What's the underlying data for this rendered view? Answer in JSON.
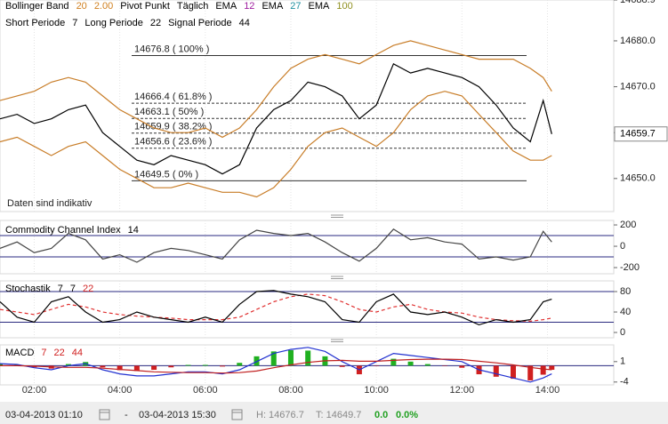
{
  "chart_data": [
    {
      "type": "line",
      "legend": [
        [
          {
            "text": "Bollinger Band",
            "color": "#000000"
          },
          {
            "text": 20,
            "color": "#d08020"
          },
          {
            "text": "2.00",
            "color": "#d08020"
          },
          {
            "text": "Pivot Punkt",
            "color": "#000000"
          },
          {
            "text": "Täglich",
            "color": "#000000"
          },
          {
            "text": "EMA",
            "color": "#000000"
          },
          {
            "text": 12,
            "color": "#a020a0"
          },
          {
            "text": "EMA",
            "color": "#000000"
          },
          {
            "text": 27,
            "color": "#2090a0"
          },
          {
            "text": "EMA",
            "color": "#000000"
          },
          {
            "text": 100,
            "color": "#909020"
          }
        ],
        [
          {
            "text": "Short Periode",
            "color": "#000000"
          },
          {
            "text": 7,
            "color": "#000000"
          },
          {
            "text": "Long Periode",
            "color": "#000000"
          },
          {
            "text": 22,
            "color": "#000000"
          },
          {
            "text": "Signal Periode",
            "color": "#000000"
          },
          {
            "text": 44,
            "color": "#000000"
          }
        ]
      ],
      "x": [
        1.2,
        1.6,
        2.0,
        2.4,
        2.8,
        3.2,
        3.6,
        4.0,
        4.4,
        4.8,
        5.2,
        5.6,
        6.0,
        6.4,
        6.8,
        7.2,
        7.6,
        8.0,
        8.4,
        8.8,
        9.2,
        9.6,
        10.0,
        10.4,
        10.8,
        11.2,
        11.6,
        12.0,
        12.4,
        12.8,
        13.2,
        13.6,
        13.9,
        14.1
      ],
      "xlim": [
        1.2,
        15.55
      ],
      "xticks": [
        {
          "value": 2,
          "label": "02:00"
        },
        {
          "value": 4,
          "label": "04:00"
        },
        {
          "value": 6,
          "label": "06:00"
        },
        {
          "value": 8,
          "label": "08:00"
        },
        {
          "value": 10,
          "label": "10:00"
        },
        {
          "value": 12,
          "label": "12:00"
        },
        {
          "value": 14,
          "label": "14:00"
        }
      ],
      "series": [
        {
          "color": "#c87d28",
          "values": [
            14667,
            14668,
            14669,
            14671,
            14672,
            14671,
            14668,
            14665,
            14663,
            14661,
            14660,
            14660,
            14661,
            14659,
            14661,
            14665,
            14670,
            14674,
            14676,
            14677,
            14676,
            14675,
            14677,
            14679,
            14680,
            14679,
            14678,
            14677,
            14676,
            14676,
            14676,
            14674,
            14672,
            14669
          ]
        },
        {
          "color": "#c87d28",
          "values": [
            14658,
            14659,
            14657,
            14655,
            14657,
            14658,
            14655,
            14652,
            14650,
            14648,
            14648,
            14649,
            14648,
            14647,
            14647,
            14646,
            14648,
            14652,
            14657,
            14660,
            14661,
            14659,
            14657,
            14660,
            14665,
            14668,
            14669,
            14668,
            14664,
            14660,
            14656,
            14654,
            14654,
            14655
          ]
        },
        {
          "color": "#000000",
          "values": [
            14663,
            14664,
            14662,
            14663,
            14665,
            14666,
            14660,
            14657,
            14654,
            14653,
            14655,
            14654,
            14653,
            14651,
            14653,
            14661,
            14665,
            14667,
            14671,
            14670,
            14668,
            14663,
            14666,
            14675,
            14673,
            14674,
            14673,
            14672,
            14670,
            14666,
            14661,
            14658,
            14667,
            14659.7
          ]
        }
      ],
      "ylim": [
        14642.8,
        14688.9
      ],
      "yticks": [
        {
          "value": 14650,
          "label": "14650.0"
        },
        {
          "value": 14660,
          "label": "14660.0"
        },
        {
          "value": 14670,
          "label": "14670.0"
        },
        {
          "value": 14680,
          "label": "14680.0"
        },
        14688.9
      ],
      "annotations": [
        {
          "value": 14676.8,
          "label": "14676.8 ( 100% )"
        },
        {
          "value": 14666.4,
          "label": "14666.4 ( 61.8% )"
        },
        {
          "value": 14663.1,
          "label": "14663.1 ( 50% )"
        },
        {
          "value": 14659.9,
          "label": "14659.9 ( 38.2% )"
        },
        {
          "value": 14656.6,
          "label": "14656.6 ( 23.6% )"
        },
        {
          "value": 14649.5,
          "label": "14649.5 ( 0% )"
        }
      ],
      "last_value": 14659.7,
      "note": "Daten sind indikativ"
    },
    {
      "type": "line",
      "legend": [
        [
          {
            "text": "Commodity Channel Index",
            "color": "#000000"
          },
          {
            "text": 14,
            "color": "#000000"
          }
        ]
      ],
      "x": [
        1.2,
        1.6,
        2.0,
        2.4,
        2.8,
        3.2,
        3.6,
        4.0,
        4.4,
        4.8,
        5.2,
        5.6,
        6.0,
        6.4,
        6.8,
        7.2,
        7.6,
        8.0,
        8.4,
        8.8,
        9.2,
        9.6,
        10.0,
        10.4,
        10.8,
        11.2,
        11.6,
        12.0,
        12.4,
        12.8,
        13.2,
        13.6,
        13.9,
        14.1
      ],
      "xlim": [
        1.2,
        15.55
      ],
      "series": [
        {
          "color": "#444444",
          "values": [
            -20,
            40,
            -60,
            -20,
            120,
            60,
            -120,
            -80,
            -150,
            -60,
            -20,
            -40,
            -80,
            -120,
            60,
            150,
            120,
            100,
            120,
            40,
            -60,
            -140,
            -20,
            160,
            60,
            80,
            40,
            20,
            -120,
            -100,
            -130,
            -100,
            140,
            40
          ]
        }
      ],
      "levels": [
        100,
        -100
      ],
      "ylim": [
        -258,
        242
      ],
      "yticks": [
        -200,
        0,
        200
      ]
    },
    {
      "type": "line",
      "legend": [
        [
          {
            "text": "Stochastik",
            "color": "#000000"
          },
          {
            "text": 7,
            "color": "#000000"
          },
          {
            "text": 7,
            "color": "#000000"
          },
          {
            "text": 22,
            "color": "#d02020"
          }
        ]
      ],
      "x": [
        1.2,
        1.6,
        2.0,
        2.4,
        2.8,
        3.2,
        3.6,
        4.0,
        4.4,
        4.8,
        5.2,
        5.6,
        6.0,
        6.4,
        6.8,
        7.2,
        7.6,
        8.0,
        8.4,
        8.8,
        9.2,
        9.6,
        10.0,
        10.4,
        10.8,
        11.2,
        11.6,
        12.0,
        12.4,
        12.8,
        13.2,
        13.6,
        13.9,
        14.1
      ],
      "xlim": [
        1.2,
        15.55
      ],
      "series": [
        {
          "color": "#e03030",
          "dash": true,
          "values": [
            45,
            40,
            35,
            45,
            55,
            50,
            40,
            35,
            32,
            30,
            28,
            25,
            25,
            25,
            30,
            45,
            60,
            70,
            75,
            72,
            60,
            45,
            40,
            50,
            55,
            45,
            40,
            38,
            30,
            25,
            23,
            22,
            25,
            28
          ]
        },
        {
          "color": "#000000",
          "values": [
            60,
            30,
            20,
            60,
            70,
            40,
            20,
            25,
            40,
            30,
            25,
            20,
            30,
            20,
            55,
            80,
            82,
            75,
            70,
            60,
            25,
            20,
            60,
            75,
            40,
            35,
            40,
            30,
            15,
            25,
            20,
            25,
            60,
            65
          ]
        }
      ],
      "levels": [
        80,
        20
      ],
      "ylim": [
        -10.4,
        100.9
      ],
      "yticks": [
        0,
        40,
        80
      ]
    },
    {
      "type": "macd",
      "legend": [
        [
          {
            "text": "MACD",
            "color": "#000000"
          },
          {
            "text": 7,
            "color": "#d02020"
          },
          {
            "text": 22,
            "color": "#d02020"
          },
          {
            "text": 44,
            "color": "#d02020"
          }
        ]
      ],
      "x": [
        1.2,
        1.6,
        2.0,
        2.4,
        2.8,
        3.2,
        3.6,
        4.0,
        4.4,
        4.8,
        5.2,
        5.6,
        6.0,
        6.4,
        6.8,
        7.2,
        7.6,
        8.0,
        8.4,
        8.8,
        9.2,
        9.6,
        10.0,
        10.4,
        10.8,
        11.2,
        11.6,
        12.0,
        12.4,
        12.8,
        13.2,
        13.6,
        13.9,
        14.1
      ],
      "xlim": [
        1.2,
        15.55
      ],
      "histogram": [
        0.5,
        0.3,
        -0.4,
        -0.7,
        0.4,
        0.9,
        -0.4,
        -1.1,
        -1.3,
        -1,
        -0.4,
        0.2,
        0.2,
        -0.2,
        0.7,
        2.3,
        3.5,
        3.8,
        3.7,
        2.3,
        -0.3,
        -2.1,
        -0.1,
        1.7,
        1,
        0.4,
        -0.1,
        -0.5,
        -2.1,
        -2.7,
        -3.2,
        -3.6,
        -2.2,
        -1
      ],
      "positive_color": "#20b020",
      "negative_color": "#d02020",
      "series": [
        {
          "color": "#2030d0",
          "values": [
            0.5,
            0.3,
            -0.5,
            -1,
            0,
            0.5,
            -1,
            -2,
            -2.5,
            -2.5,
            -2,
            -1.5,
            -1.5,
            -2,
            -1,
            1,
            3,
            4,
            4.5,
            3.5,
            1,
            -1,
            1,
            3,
            2.5,
            2,
            1.5,
            1,
            -1,
            -2,
            -3,
            -4,
            -3,
            -2
          ]
        },
        {
          "color": "#c02020",
          "values": [
            0,
            0,
            -0.1,
            -0.3,
            -0.4,
            -0.4,
            -0.6,
            -0.9,
            -1.2,
            -1.5,
            -1.6,
            -1.7,
            -1.7,
            -1.8,
            -1.7,
            -1.3,
            -0.5,
            0.2,
            0.8,
            1.2,
            1.3,
            1.1,
            1.1,
            1.3,
            1.5,
            1.6,
            1.6,
            1.5,
            1.1,
            0.7,
            0.2,
            -0.4,
            -0.8,
            -1
          ]
        }
      ],
      "levels": [
        0
      ],
      "ylim": [
        -4.7,
        5.1
      ],
      "yticks": [
        -4,
        1
      ]
    }
  ],
  "footer": {
    "start": "03-04-2013 01:10",
    "separator": "-",
    "end": "03-04-2013 15:30",
    "high": "H: 14676.7",
    "low": "T: 14649.7",
    "change": "0.0",
    "change_pct": "0.0%"
  }
}
